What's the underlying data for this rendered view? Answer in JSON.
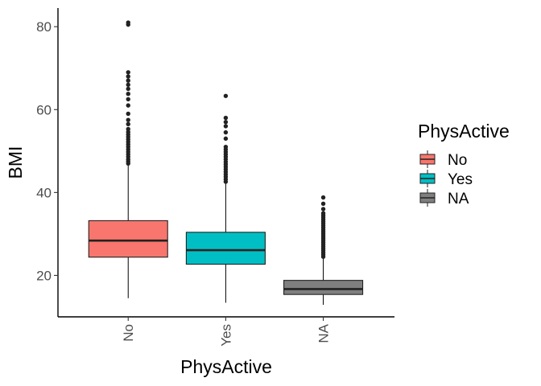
{
  "chart_data": {
    "type": "box",
    "xlabel": "PhysActive",
    "ylabel": "BMI",
    "categories": [
      "No",
      "Yes",
      "NA"
    ],
    "y_ticks": [
      20,
      40,
      60,
      80
    ],
    "ylim": [
      10,
      84.5
    ],
    "grid": false,
    "legend": {
      "title": "PhysActive",
      "placement": "right",
      "entries": [
        "No",
        "Yes",
        "NA"
      ]
    },
    "series": [
      {
        "category": "No",
        "color": "#F8766D",
        "whisker_low": 14.5,
        "q1": 24.4,
        "median": 28.4,
        "q3": 33.2,
        "whisker_high": 46.6,
        "outliers": [
          47,
          47.5,
          48,
          48.6,
          49.2,
          49.8,
          50.4,
          51,
          51.6,
          52.2,
          52.8,
          53.4,
          54,
          54.6,
          55.3,
          56.5,
          57.5,
          59,
          61,
          62.5,
          63.8,
          65,
          66,
          67,
          68,
          69,
          80.5,
          81
        ]
      },
      {
        "category": "Yes",
        "color": "#00BFC4",
        "whisker_low": 13.4,
        "q1": 22.7,
        "median": 26.1,
        "q3": 30.4,
        "whisker_high": 42.2,
        "outliers": [
          42.6,
          43.2,
          43.8,
          44.4,
          45,
          45.6,
          46.2,
          46.8,
          47.4,
          48,
          48.6,
          49.2,
          49.8,
          50.4,
          51,
          53,
          54.5,
          56,
          57,
          58,
          63.3
        ]
      },
      {
        "category": "NA",
        "color": "#7F7F7F",
        "whisker_low": 12.9,
        "q1": 15.4,
        "median": 16.7,
        "q3": 18.8,
        "whisker_high": 24.1,
        "outliers": [
          24.5,
          25,
          25.5,
          26,
          26.5,
          27,
          27.5,
          28,
          28.5,
          29,
          29.5,
          30,
          30.5,
          31,
          31.5,
          32,
          32.5,
          33,
          33.5,
          34,
          34.5,
          35,
          36,
          37.3,
          38.8
        ]
      }
    ]
  }
}
